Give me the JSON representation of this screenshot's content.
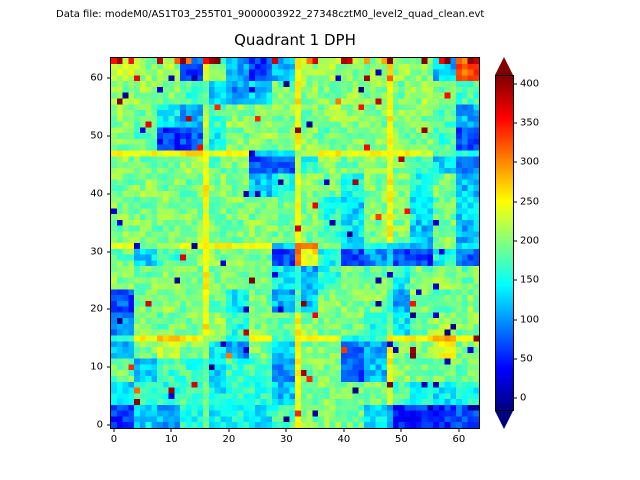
{
  "header": {
    "data_file_label": "Data file: modeM0/AS1T03_255T01_9000003922_27348cztM0_level2_quad_clean.evt",
    "title": "Quadrant 1 DPH"
  },
  "chart_data": {
    "type": "heatmap",
    "title": "Quadrant 1 DPH",
    "grid_size": 64,
    "x_range": [
      0,
      64
    ],
    "y_range": [
      0,
      64
    ],
    "x_ticks": [
      0,
      10,
      20,
      30,
      40,
      50,
      60
    ],
    "y_ticks": [
      0,
      10,
      20,
      30,
      40,
      50,
      60
    ],
    "colormap": "jet",
    "colorbar_ticks": [
      0,
      50,
      100,
      150,
      200,
      250,
      300,
      350,
      400
    ],
    "colorbar_extend": "both",
    "value_range": [
      -15,
      410
    ],
    "background_level": 200,
    "noise_amplitude": 28,
    "seed": 12345,
    "module_boundary_step": 16,
    "module_boundary_boost": 55,
    "top_edge_hot_probability": 0.32,
    "hot_pixel_probability": 0.012,
    "cold_pixel_probability": 0.015,
    "coarse_grid_note": "16x16 coarse map of mean DPH counts, row 0 = top of image (y=63..60), each cell covers 4x4 detector pixels",
    "coarse_grid": [
      [
        230,
        205,
        210,
        70,
        190,
        110,
        60,
        120,
        205,
        210,
        200,
        205,
        210,
        200,
        120,
        320
      ],
      [
        200,
        210,
        195,
        170,
        130,
        100,
        130,
        195,
        205,
        195,
        205,
        200,
        195,
        205,
        195,
        170
      ],
      [
        205,
        195,
        140,
        110,
        170,
        205,
        195,
        200,
        190,
        205,
        200,
        195,
        200,
        190,
        180,
        110
      ],
      [
        195,
        180,
        60,
        70,
        150,
        195,
        205,
        195,
        200,
        190,
        200,
        205,
        195,
        200,
        170,
        70
      ],
      [
        200,
        195,
        190,
        205,
        185,
        195,
        70,
        80,
        160,
        200,
        190,
        200,
        195,
        180,
        130,
        100
      ],
      [
        195,
        205,
        195,
        190,
        200,
        195,
        120,
        160,
        195,
        190,
        150,
        195,
        200,
        150,
        195,
        120
      ],
      [
        200,
        195,
        205,
        195,
        190,
        200,
        195,
        190,
        200,
        160,
        130,
        200,
        195,
        140,
        190,
        130
      ],
      [
        195,
        200,
        190,
        205,
        195,
        190,
        200,
        195,
        190,
        170,
        140,
        195,
        200,
        120,
        195,
        110
      ],
      [
        190,
        130,
        170,
        195,
        200,
        195,
        190,
        70,
        250,
        150,
        70,
        100,
        70,
        60,
        150,
        80
      ],
      [
        200,
        195,
        205,
        190,
        200,
        195,
        200,
        140,
        110,
        160,
        200,
        190,
        150,
        195,
        200,
        190
      ],
      [
        70,
        195,
        200,
        195,
        190,
        140,
        190,
        110,
        130,
        195,
        200,
        195,
        110,
        200,
        190,
        200
      ],
      [
        90,
        200,
        190,
        195,
        205,
        160,
        195,
        190,
        200,
        195,
        190,
        160,
        140,
        195,
        205,
        195
      ],
      [
        110,
        195,
        225,
        200,
        150,
        100,
        195,
        120,
        200,
        195,
        90,
        110,
        195,
        200,
        240,
        195
      ],
      [
        190,
        120,
        170,
        170,
        130,
        170,
        170,
        100,
        195,
        200,
        70,
        120,
        200,
        195,
        200,
        190
      ],
      [
        130,
        170,
        160,
        170,
        140,
        170,
        160,
        120,
        195,
        200,
        190,
        195,
        170,
        150,
        140,
        150
      ],
      [
        60,
        130,
        110,
        150,
        140,
        150,
        140,
        170,
        195,
        200,
        190,
        130,
        50,
        55,
        60,
        80
      ]
    ]
  },
  "colors": {
    "background": "#ffffff",
    "text": "#000000",
    "colorbar_low": "#000080",
    "colorbar_high": "#800000"
  }
}
